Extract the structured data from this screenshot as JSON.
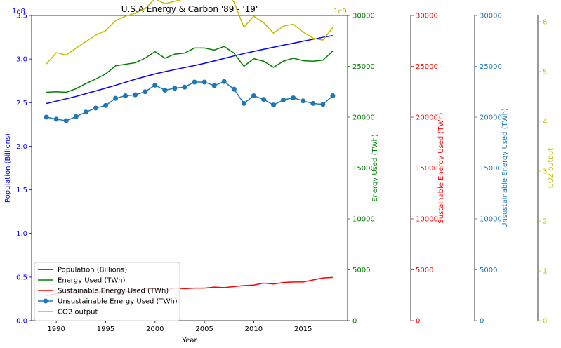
{
  "chart_data": {
    "type": "line",
    "title": "U.S.A Energy & Carbon '89 - '19'",
    "xlabel": "Year",
    "x": [
      1989,
      1990,
      1991,
      1992,
      1993,
      1994,
      1995,
      1996,
      1997,
      1998,
      1999,
      2000,
      2001,
      2002,
      2003,
      2004,
      2005,
      2006,
      2007,
      2008,
      2009,
      2010,
      2011,
      2012,
      2013,
      2014,
      2015,
      2016,
      2017,
      2018
    ],
    "x_ticks": [
      1990,
      1995,
      2000,
      2005,
      2010,
      2015
    ],
    "xlim": [
      1987.5,
      2019.5
    ],
    "grid": false,
    "legend_position": "lower-left",
    "axes": [
      {
        "key": "population",
        "label": "Population (Billions)",
        "color": "#0000ff",
        "side": "left",
        "range": [
          0,
          350000000
        ],
        "ticks": [
          0,
          50000000,
          100000000,
          150000000,
          200000000,
          250000000,
          300000000,
          350000000
        ],
        "tick_labels": [
          "0.0",
          "0.5",
          "1.0",
          "1.5",
          "2.0",
          "2.5",
          "3.0",
          "3.5"
        ],
        "offset_text": "1e8"
      },
      {
        "key": "energy",
        "label": "Energy Used (TWh)",
        "color": "#008000",
        "side": "right",
        "range": [
          0,
          30000
        ],
        "ticks": [
          0,
          5000,
          10000,
          15000,
          20000,
          25000,
          30000
        ],
        "tick_labels": [
          "0",
          "5000",
          "10000",
          "15000",
          "20000",
          "25000",
          "30000"
        ],
        "offset_text": ""
      },
      {
        "key": "sustainable",
        "label": "Sustainable Energy Used (TWh)",
        "color": "#ff0000",
        "side": "right",
        "range": [
          0,
          30000
        ],
        "ticks": [
          0,
          5000,
          10000,
          15000,
          20000,
          25000,
          30000
        ],
        "tick_labels": [
          "0",
          "5000",
          "10000",
          "15000",
          "20000",
          "25000",
          "30000"
        ],
        "offset_text": ""
      },
      {
        "key": "unsustainable",
        "label": "Unsustainable Energy Used (TWh)",
        "color": "#1f77b4",
        "side": "right",
        "range": [
          0,
          30000
        ],
        "ticks": [
          0,
          5000,
          10000,
          15000,
          20000,
          25000,
          30000
        ],
        "tick_labels": [
          "0",
          "5000",
          "10000",
          "15000",
          "20000",
          "25000",
          "30000"
        ],
        "offset_text": ""
      },
      {
        "key": "co2",
        "label": "CO2 output",
        "color": "#bfbf00",
        "side": "right",
        "range": [
          0,
          6125000000
        ],
        "ticks": [
          0,
          1000000000,
          2000000000,
          3000000000,
          4000000000,
          5000000000,
          6000000000
        ],
        "tick_labels": [
          "0",
          "1",
          "2",
          "3",
          "4",
          "5",
          "6"
        ],
        "offset_text": "1e9"
      }
    ],
    "series": [
      {
        "name": "Population (Billions)",
        "axis": "population",
        "color": "#0000ff",
        "marker": false,
        "values": [
          249000000,
          251700000,
          254400000,
          257100000,
          260300000,
          263400000,
          266600000,
          269900000,
          273300000,
          276800000,
          279900000,
          282900000,
          285500000,
          287900000,
          290200000,
          292600000,
          295100000,
          297800000,
          300700000,
          303600000,
          306300000,
          308800000,
          311200000,
          313600000,
          315900000,
          318100000,
          320400000,
          322700000,
          324900000,
          326900000
        ]
      },
      {
        "name": "Energy Used (TWh)",
        "axis": "energy",
        "color": "#008000",
        "marker": false,
        "values": [
          22450,
          22500,
          22450,
          22800,
          23300,
          23750,
          24250,
          25050,
          25200,
          25350,
          25800,
          26450,
          25800,
          26200,
          26300,
          26800,
          26800,
          26600,
          26950,
          26300,
          25000,
          25750,
          25500,
          24900,
          25500,
          25800,
          25550,
          25500,
          25600,
          26500
        ]
      },
      {
        "name": "Sustainable Energy Used (TWh)",
        "axis": "sustainable",
        "color": "#ff0000",
        "marker": false,
        "values": [
          2450,
          2650,
          2800,
          2700,
          2850,
          2750,
          2950,
          3000,
          2850,
          2900,
          3150,
          3150,
          3000,
          3200,
          3150,
          3200,
          3200,
          3300,
          3250,
          3350,
          3450,
          3500,
          3700,
          3600,
          3750,
          3800,
          3800,
          4000,
          4200,
          4250
        ]
      },
      {
        "name": "Unsustainable Energy Used (TWh)",
        "axis": "unsustainable",
        "color": "#1f77b4",
        "marker": true,
        "values": [
          20000,
          19800,
          19650,
          20050,
          20500,
          20900,
          21150,
          21850,
          22100,
          22200,
          22500,
          23150,
          22650,
          22850,
          22950,
          23450,
          23450,
          23100,
          23500,
          22750,
          21350,
          22100,
          21750,
          21200,
          21700,
          21900,
          21600,
          21350,
          21250,
          22100
        ]
      },
      {
        "name": "CO2 output",
        "axis": "co2",
        "color": "#bfbf00",
        "marker": false,
        "values": [
          5150000000,
          5380000000,
          5330000000,
          5470000000,
          5600000000,
          5730000000,
          5820000000,
          6020000000,
          6110000000,
          6170000000,
          6260000000,
          6460000000,
          6360000000,
          6410000000,
          6460000000,
          6570000000,
          6640000000,
          6520000000,
          6620000000,
          6390000000,
          5890000000,
          6110000000,
          5980000000,
          5770000000,
          5910000000,
          5950000000,
          5790000000,
          5670000000,
          5630000000,
          5880000000
        ]
      }
    ]
  }
}
